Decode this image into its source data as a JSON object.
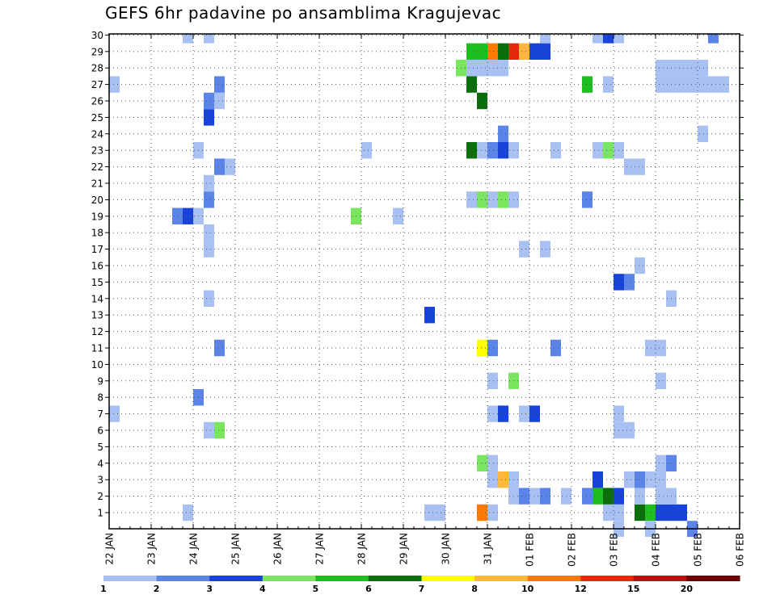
{
  "chart_data": {
    "type": "heatmap",
    "title": "GEFS 6hr padavine po ansamblima Kragujevac",
    "y_categories": [
      "1",
      "2",
      "3",
      "4",
      "5",
      "6",
      "7",
      "8",
      "9",
      "10",
      "11",
      "12",
      "13",
      "14",
      "15",
      "16",
      "17",
      "18",
      "19",
      "20",
      "21",
      "22",
      "23",
      "24",
      "25",
      "26",
      "27",
      "28",
      "29",
      "30"
    ],
    "x_tick_labels": [
      "22 JAN",
      "23 JAN",
      "24 JAN",
      "25 JAN",
      "26 JAN",
      "27 JAN",
      "28 JAN",
      "29 JAN",
      "30 JAN",
      "31 JAN",
      "01 FEB",
      "02 FEB",
      "03 FEB",
      "04 FEB",
      "05 FEB",
      "06 FEB"
    ],
    "x_range": [
      "22 JAN 00z",
      "06 FEB 00z"
    ],
    "x_step_hours": 6,
    "grid": true,
    "legend": {
      "placement": "bottom",
      "labels": [
        "1",
        "2",
        "3",
        "4",
        "5",
        "6",
        "7",
        "8",
        "10",
        "12",
        "15",
        "20"
      ],
      "colors": [
        "#a9c1f2",
        "#5b84e8",
        "#1743d8",
        "#7ae660",
        "#1fbe1f",
        "#0a6e0a",
        "#ffff00",
        "#ffb83c",
        "#ff7a00",
        "#e8280a",
        "#b80f0f",
        "#6b0000"
      ]
    },
    "cells": [
      [
        1,
        7,
        1
      ],
      [
        1,
        30,
        1
      ],
      [
        1,
        31,
        1
      ],
      [
        1,
        35,
        9
      ],
      [
        1,
        36,
        1
      ],
      [
        1,
        47,
        1
      ],
      [
        1,
        48,
        1
      ],
      [
        1,
        50,
        6
      ],
      [
        1,
        51,
        5
      ],
      [
        1,
        52,
        3
      ],
      [
        1,
        53,
        3
      ],
      [
        1,
        54,
        3
      ],
      [
        0,
        48,
        1
      ],
      [
        0,
        51,
        1
      ],
      [
        0,
        55,
        2
      ],
      [
        2,
        38,
        1
      ],
      [
        2,
        39,
        2
      ],
      [
        2,
        40,
        1
      ],
      [
        2,
        41,
        2
      ],
      [
        2,
        43,
        1
      ],
      [
        2,
        45,
        2
      ],
      [
        2,
        46,
        5
      ],
      [
        2,
        47,
        6
      ],
      [
        2,
        48,
        3
      ],
      [
        2,
        50,
        1
      ],
      [
        2,
        52,
        1
      ],
      [
        2,
        53,
        1
      ],
      [
        3,
        36,
        1
      ],
      [
        3,
        37,
        8
      ],
      [
        3,
        38,
        1
      ],
      [
        3,
        46,
        3
      ],
      [
        3,
        49,
        1
      ],
      [
        3,
        50,
        2
      ],
      [
        3,
        51,
        1
      ],
      [
        3,
        52,
        1
      ],
      [
        4,
        35,
        4
      ],
      [
        4,
        36,
        1
      ],
      [
        4,
        52,
        1
      ],
      [
        4,
        53,
        2
      ],
      [
        6,
        9,
        1
      ],
      [
        6,
        10,
        4
      ],
      [
        6,
        48,
        1
      ],
      [
        6,
        49,
        1
      ],
      [
        7,
        0,
        1
      ],
      [
        7,
        36,
        1
      ],
      [
        7,
        37,
        3
      ],
      [
        7,
        39,
        1
      ],
      [
        7,
        40,
        3
      ],
      [
        7,
        48,
        1
      ],
      [
        8,
        8,
        2
      ],
      [
        9,
        36,
        1
      ],
      [
        9,
        38,
        4
      ],
      [
        9,
        52,
        1
      ],
      [
        11,
        10,
        2
      ],
      [
        11,
        35,
        7
      ],
      [
        11,
        36,
        2
      ],
      [
        11,
        42,
        2
      ],
      [
        11,
        51,
        1
      ],
      [
        11,
        52,
        1
      ],
      [
        13,
        30,
        3
      ],
      [
        14,
        9,
        1
      ],
      [
        14,
        53,
        1
      ],
      [
        15,
        48,
        3
      ],
      [
        15,
        49,
        2
      ],
      [
        16,
        50,
        1
      ],
      [
        17,
        9,
        1
      ],
      [
        17,
        39,
        1
      ],
      [
        17,
        41,
        1
      ],
      [
        18,
        9,
        1
      ],
      [
        19,
        6,
        2
      ],
      [
        19,
        7,
        3
      ],
      [
        19,
        8,
        1
      ],
      [
        19,
        23,
        4
      ],
      [
        19,
        27,
        1
      ],
      [
        20,
        9,
        2
      ],
      [
        20,
        34,
        1
      ],
      [
        20,
        35,
        4
      ],
      [
        20,
        36,
        1
      ],
      [
        20,
        37,
        4
      ],
      [
        20,
        38,
        1
      ],
      [
        20,
        45,
        2
      ],
      [
        20,
        60,
        5
      ],
      [
        21,
        9,
        1
      ],
      [
        22,
        10,
        2
      ],
      [
        22,
        11,
        1
      ],
      [
        22,
        49,
        1
      ],
      [
        22,
        50,
        1
      ],
      [
        23,
        8,
        1
      ],
      [
        23,
        24,
        1
      ],
      [
        23,
        34,
        6
      ],
      [
        23,
        35,
        1
      ],
      [
        23,
        36,
        2
      ],
      [
        23,
        37,
        3
      ],
      [
        23,
        38,
        1
      ],
      [
        23,
        42,
        1
      ],
      [
        23,
        46,
        1
      ],
      [
        23,
        47,
        4
      ],
      [
        23,
        48,
        1
      ],
      [
        24,
        37,
        2
      ],
      [
        24,
        56,
        1
      ],
      [
        25,
        9,
        3
      ],
      [
        26,
        9,
        2
      ],
      [
        26,
        10,
        1
      ],
      [
        26,
        35,
        6
      ],
      [
        27,
        0,
        1
      ],
      [
        27,
        10,
        2
      ],
      [
        27,
        34,
        6
      ],
      [
        27,
        45,
        5
      ],
      [
        27,
        47,
        1
      ],
      [
        27,
        52,
        1
      ],
      [
        27,
        53,
        1
      ],
      [
        27,
        54,
        1
      ],
      [
        27,
        55,
        1
      ],
      [
        27,
        56,
        1
      ],
      [
        27,
        57,
        1
      ],
      [
        27,
        58,
        1
      ],
      [
        28,
        33,
        4
      ],
      [
        28,
        34,
        1
      ],
      [
        28,
        35,
        1
      ],
      [
        28,
        36,
        1
      ],
      [
        28,
        37,
        1
      ],
      [
        28,
        52,
        1
      ],
      [
        28,
        53,
        1
      ],
      [
        28,
        54,
        1
      ],
      [
        28,
        55,
        1
      ],
      [
        28,
        56,
        1
      ],
      [
        29,
        34,
        5
      ],
      [
        29,
        35,
        5
      ],
      [
        29,
        36,
        9
      ],
      [
        29,
        37,
        6
      ],
      [
        29,
        38,
        10
      ],
      [
        29,
        39,
        8
      ],
      [
        29,
        40,
        3
      ],
      [
        29,
        41,
        3
      ],
      [
        30,
        7,
        1
      ],
      [
        30,
        9,
        1
      ],
      [
        30,
        41,
        1
      ],
      [
        30,
        46,
        1
      ],
      [
        30,
        47,
        3
      ],
      [
        30,
        48,
        1
      ],
      [
        30,
        57,
        2
      ]
    ]
  }
}
